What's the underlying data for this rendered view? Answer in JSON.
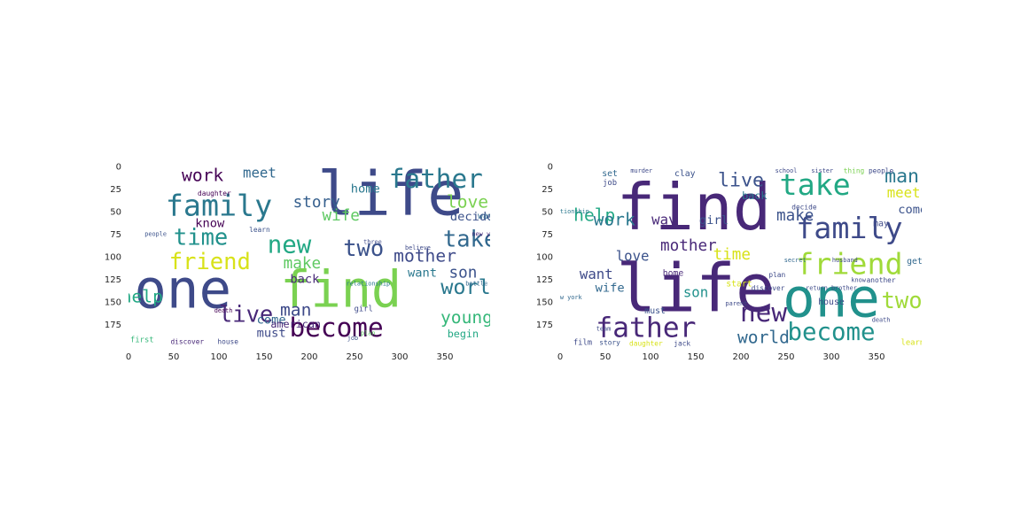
{
  "figure": {
    "panels": [
      {
        "id": "left",
        "x_ticks": [
          "0",
          "50",
          "100",
          "150",
          "200",
          "250",
          "300",
          "350"
        ],
        "y_ticks": [
          "0",
          "25",
          "50",
          "75",
          "100",
          "125",
          "150",
          "175"
        ],
        "x_range": [
          0,
          400
        ],
        "y_range": [
          0,
          200
        ],
        "words": [
          {
            "text": "life",
            "x": 290,
            "y": 35,
            "size": 70,
            "color": "#3e4a89"
          },
          {
            "text": "one",
            "x": 60,
            "y": 140,
            "size": 62,
            "color": "#3e4a89"
          },
          {
            "text": "find",
            "x": 235,
            "y": 140,
            "size": 58,
            "color": "#7ad151"
          },
          {
            "text": "family",
            "x": 100,
            "y": 45,
            "size": 34,
            "color": "#2a788e"
          },
          {
            "text": "father",
            "x": 340,
            "y": 15,
            "size": 30,
            "color": "#2a788e"
          },
          {
            "text": "become",
            "x": 230,
            "y": 180,
            "size": 30,
            "color": "#440154"
          },
          {
            "text": "time",
            "x": 80,
            "y": 80,
            "size": 26,
            "color": "#21918c"
          },
          {
            "text": "new",
            "x": 178,
            "y": 88,
            "size": 28,
            "color": "#22a884"
          },
          {
            "text": "friend",
            "x": 90,
            "y": 107,
            "size": 26,
            "color": "#d8e219"
          },
          {
            "text": "take",
            "x": 378,
            "y": 82,
            "size": 26,
            "color": "#31688e"
          },
          {
            "text": "two",
            "x": 260,
            "y": 92,
            "size": 26,
            "color": "#3b528b"
          },
          {
            "text": "live",
            "x": 130,
            "y": 165,
            "size": 26,
            "color": "#482878"
          },
          {
            "text": "world",
            "x": 380,
            "y": 135,
            "size": 24,
            "color": "#2a788e"
          },
          {
            "text": "mother",
            "x": 328,
            "y": 100,
            "size": 20,
            "color": "#3e4a89"
          },
          {
            "text": "love",
            "x": 375,
            "y": 40,
            "size": 20,
            "color": "#7ad151"
          },
          {
            "text": "young",
            "x": 374,
            "y": 168,
            "size": 20,
            "color": "#35b779"
          },
          {
            "text": "help",
            "x": 15,
            "y": 145,
            "size": 20,
            "color": "#22a884"
          },
          {
            "text": "work",
            "x": 82,
            "y": 11,
            "size": 20,
            "color": "#440154"
          },
          {
            "text": "man",
            "x": 185,
            "y": 160,
            "size": 20,
            "color": "#3e4a89"
          },
          {
            "text": "story",
            "x": 208,
            "y": 40,
            "size": 18,
            "color": "#355f8d"
          },
          {
            "text": "wife",
            "x": 235,
            "y": 55,
            "size": 18,
            "color": "#5ec962"
          },
          {
            "text": "son",
            "x": 370,
            "y": 118,
            "size": 18,
            "color": "#3b528b"
          },
          {
            "text": "make",
            "x": 192,
            "y": 108,
            "size": 18,
            "color": "#5ec962"
          },
          {
            "text": "meet",
            "x": 145,
            "y": 8,
            "size": 16,
            "color": "#31688e"
          },
          {
            "text": "home",
            "x": 262,
            "y": 25,
            "size": 14,
            "color": "#2a788e"
          },
          {
            "text": "decide",
            "x": 380,
            "y": 56,
            "size": 14,
            "color": "#3b528b"
          },
          {
            "text": "know",
            "x": 90,
            "y": 63,
            "size": 14,
            "color": "#440154"
          },
          {
            "text": "want",
            "x": 325,
            "y": 118,
            "size": 14,
            "color": "#2a788e"
          },
          {
            "text": "back",
            "x": 195,
            "y": 125,
            "size": 14,
            "color": "#482878"
          },
          {
            "text": "come",
            "x": 158,
            "y": 170,
            "size": 14,
            "color": "#31688e"
          },
          {
            "text": "must",
            "x": 158,
            "y": 185,
            "size": 14,
            "color": "#3e4a89"
          },
          {
            "text": "begin",
            "x": 370,
            "y": 186,
            "size": 12,
            "color": "#22a884"
          },
          {
            "text": "american",
            "x": 185,
            "y": 175,
            "size": 12,
            "color": "#482878"
          },
          {
            "text": "first",
            "x": 15,
            "y": 192,
            "size": 9,
            "color": "#35b779"
          },
          {
            "text": "discover",
            "x": 65,
            "y": 194,
            "size": 8,
            "color": "#482878"
          },
          {
            "text": "house",
            "x": 110,
            "y": 194,
            "size": 8,
            "color": "#3e4a89"
          },
          {
            "text": "daughter",
            "x": 95,
            "y": 30,
            "size": 8,
            "color": "#440154"
          },
          {
            "text": "learn",
            "x": 145,
            "y": 70,
            "size": 8,
            "color": "#3b528b"
          },
          {
            "text": "way",
            "x": 395,
            "y": 55,
            "size": 10,
            "color": "#31688e"
          },
          {
            "text": "new york",
            "x": 396,
            "y": 75,
            "size": 7,
            "color": "#482878"
          },
          {
            "text": "girl",
            "x": 260,
            "y": 158,
            "size": 9,
            "color": "#3e4a89"
          },
          {
            "text": "relationship",
            "x": 265,
            "y": 130,
            "size": 7,
            "color": "#2a788e"
          },
          {
            "text": "death",
            "x": 105,
            "y": 160,
            "size": 7,
            "color": "#440154"
          },
          {
            "text": "people",
            "x": 30,
            "y": 75,
            "size": 7,
            "color": "#3b528b"
          },
          {
            "text": "three",
            "x": 270,
            "y": 84,
            "size": 7,
            "color": "#3e4a89"
          },
          {
            "text": "believe",
            "x": 320,
            "y": 90,
            "size": 7,
            "color": "#3e4a89"
          },
          {
            "text": "battle",
            "x": 385,
            "y": 130,
            "size": 7,
            "color": "#31688e"
          },
          {
            "text": "plan",
            "x": 265,
            "y": 185,
            "size": 7,
            "color": "#5ec962"
          },
          {
            "text": "job",
            "x": 248,
            "y": 190,
            "size": 7,
            "color": "#3b528b"
          }
        ]
      },
      {
        "id": "right",
        "x_ticks": [
          "0",
          "50",
          "100",
          "150",
          "200",
          "250",
          "300",
          "350"
        ],
        "y_ticks": [
          "0",
          "25",
          "50",
          "75",
          "100",
          "125",
          "150",
          "175"
        ],
        "x_range": [
          0,
          400
        ],
        "y_range": [
          0,
          200
        ],
        "words": [
          {
            "text": "find",
            "x": 148,
            "y": 50,
            "size": 74,
            "color": "#482878"
          },
          {
            "text": "life",
            "x": 150,
            "y": 140,
            "size": 76,
            "color": "#482878"
          },
          {
            "text": "one",
            "x": 300,
            "y": 150,
            "size": 62,
            "color": "#21918c"
          },
          {
            "text": "family",
            "x": 320,
            "y": 70,
            "size": 34,
            "color": "#3e4a89"
          },
          {
            "text": "take",
            "x": 282,
            "y": 22,
            "size": 34,
            "color": "#22a884"
          },
          {
            "text": "friend",
            "x": 320,
            "y": 110,
            "size": 34,
            "color": "#a0da39"
          },
          {
            "text": "father",
            "x": 95,
            "y": 180,
            "size": 32,
            "color": "#482878"
          },
          {
            "text": "new",
            "x": 225,
            "y": 163,
            "size": 30,
            "color": "#482878"
          },
          {
            "text": "become",
            "x": 300,
            "y": 185,
            "size": 28,
            "color": "#21918c"
          },
          {
            "text": "two",
            "x": 378,
            "y": 150,
            "size": 26,
            "color": "#a0da39"
          },
          {
            "text": "man",
            "x": 378,
            "y": 12,
            "size": 22,
            "color": "#2a788e"
          },
          {
            "text": "live",
            "x": 200,
            "y": 16,
            "size": 22,
            "color": "#3b528b"
          },
          {
            "text": "world",
            "x": 225,
            "y": 190,
            "size": 20,
            "color": "#31688e"
          },
          {
            "text": "help",
            "x": 38,
            "y": 55,
            "size": 20,
            "color": "#22a884"
          },
          {
            "text": "work",
            "x": 60,
            "y": 60,
            "size": 20,
            "color": "#2a788e"
          },
          {
            "text": "make",
            "x": 260,
            "y": 55,
            "size": 18,
            "color": "#3b528b"
          },
          {
            "text": "mother",
            "x": 142,
            "y": 88,
            "size": 18,
            "color": "#482878"
          },
          {
            "text": "time",
            "x": 190,
            "y": 98,
            "size": 18,
            "color": "#d8e219"
          },
          {
            "text": "meet",
            "x": 380,
            "y": 30,
            "size": 16,
            "color": "#d8e219"
          },
          {
            "text": "want",
            "x": 40,
            "y": 120,
            "size": 16,
            "color": "#3e4a89"
          },
          {
            "text": "love",
            "x": 80,
            "y": 100,
            "size": 16,
            "color": "#3b528b"
          },
          {
            "text": "way",
            "x": 115,
            "y": 60,
            "size": 16,
            "color": "#482878"
          },
          {
            "text": "son",
            "x": 150,
            "y": 140,
            "size": 16,
            "color": "#21918c"
          },
          {
            "text": "wife",
            "x": 55,
            "y": 135,
            "size": 14,
            "color": "#31688e"
          },
          {
            "text": "girl",
            "x": 170,
            "y": 60,
            "size": 14,
            "color": "#3b528b"
          },
          {
            "text": "come",
            "x": 390,
            "y": 48,
            "size": 14,
            "color": "#3b528b"
          },
          {
            "text": "back",
            "x": 215,
            "y": 33,
            "size": 12,
            "color": "#2a788e"
          },
          {
            "text": "house",
            "x": 300,
            "y": 150,
            "size": 10,
            "color": "#3e4a89"
          },
          {
            "text": "gets",
            "x": 395,
            "y": 105,
            "size": 10,
            "color": "#31688e"
          },
          {
            "text": "may",
            "x": 355,
            "y": 63,
            "size": 10,
            "color": "#3e4a89"
          },
          {
            "text": "start",
            "x": 198,
            "y": 130,
            "size": 10,
            "color": "#d8e219"
          },
          {
            "text": "home",
            "x": 125,
            "y": 118,
            "size": 10,
            "color": "#482878"
          },
          {
            "text": "must",
            "x": 105,
            "y": 160,
            "size": 10,
            "color": "#3b528b"
          },
          {
            "text": "learn",
            "x": 390,
            "y": 195,
            "size": 9,
            "color": "#d8e219"
          },
          {
            "text": "set",
            "x": 55,
            "y": 8,
            "size": 10,
            "color": "#31688e"
          },
          {
            "text": "job",
            "x": 55,
            "y": 18,
            "size": 9,
            "color": "#3e4a89"
          },
          {
            "text": "clay",
            "x": 138,
            "y": 8,
            "size": 10,
            "color": "#3b528b"
          },
          {
            "text": "film",
            "x": 25,
            "y": 195,
            "size": 9,
            "color": "#3e4a89"
          },
          {
            "text": "story",
            "x": 55,
            "y": 195,
            "size": 8,
            "color": "#3b528b"
          },
          {
            "text": "daughter",
            "x": 95,
            "y": 196,
            "size": 8,
            "color": "#d8e219"
          },
          {
            "text": "jack",
            "x": 135,
            "y": 196,
            "size": 8,
            "color": "#3e4a89"
          },
          {
            "text": "another",
            "x": 355,
            "y": 126,
            "size": 8,
            "color": "#3e4a89"
          },
          {
            "text": "know",
            "x": 330,
            "y": 126,
            "size": 7,
            "color": "#3e4a89"
          },
          {
            "text": "husband",
            "x": 315,
            "y": 104,
            "size": 7,
            "color": "#3e4a89"
          },
          {
            "text": "secret",
            "x": 260,
            "y": 104,
            "size": 7,
            "color": "#31688e"
          },
          {
            "text": "discover",
            "x": 230,
            "y": 135,
            "size": 8,
            "color": "#3e4a89"
          },
          {
            "text": "parent",
            "x": 195,
            "y": 152,
            "size": 7,
            "color": "#3e4a89"
          },
          {
            "text": "relationship",
            "x": 8,
            "y": 50,
            "size": 7,
            "color": "#2a788e"
          },
          {
            "text": "new york",
            "x": 8,
            "y": 145,
            "size": 7,
            "color": "#31688e"
          },
          {
            "text": "team",
            "x": 48,
            "y": 180,
            "size": 7,
            "color": "#3e4a89"
          },
          {
            "text": "people",
            "x": 355,
            "y": 5,
            "size": 8,
            "color": "#3e4a89"
          },
          {
            "text": "thing",
            "x": 325,
            "y": 5,
            "size": 8,
            "color": "#7ad151"
          },
          {
            "text": "school",
            "x": 250,
            "y": 5,
            "size": 7,
            "color": "#3e4a89"
          },
          {
            "text": "sister",
            "x": 290,
            "y": 5,
            "size": 7,
            "color": "#3e4a89"
          },
          {
            "text": "murder",
            "x": 90,
            "y": 5,
            "size": 7,
            "color": "#3e4a89"
          },
          {
            "text": "decide",
            "x": 270,
            "y": 45,
            "size": 8,
            "color": "#3e4a89"
          },
          {
            "text": "plan",
            "x": 240,
            "y": 120,
            "size": 8,
            "color": "#3e4a89"
          },
          {
            "text": "death",
            "x": 355,
            "y": 170,
            "size": 7,
            "color": "#3e4a89"
          },
          {
            "text": "return brother",
            "x": 300,
            "y": 135,
            "size": 7,
            "color": "#3e4a89"
          }
        ]
      }
    ]
  }
}
